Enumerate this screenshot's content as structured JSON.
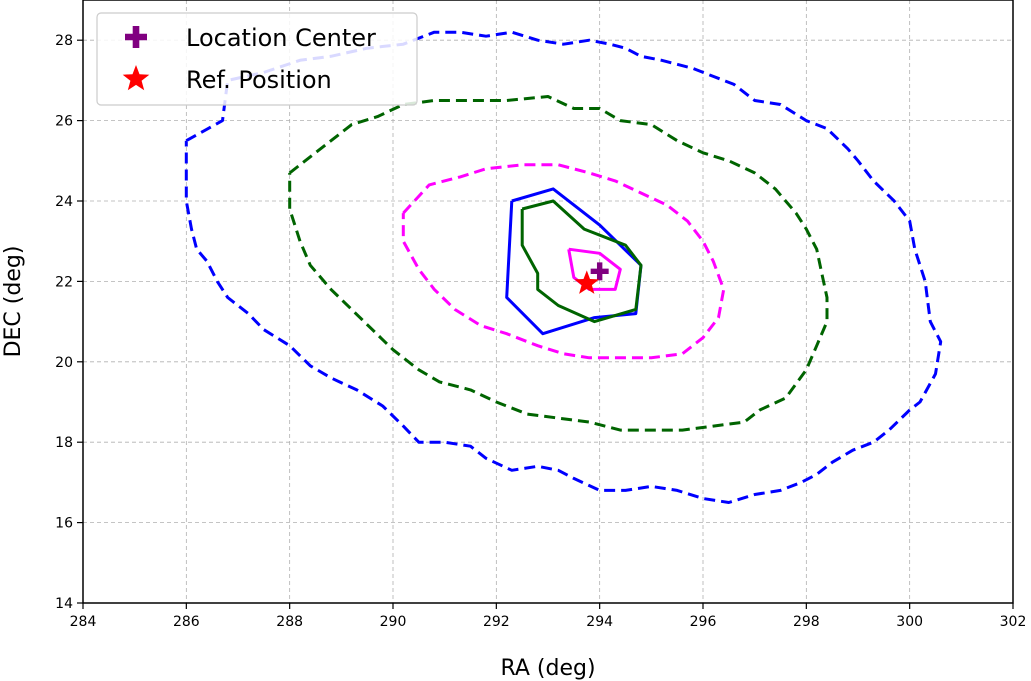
{
  "chart_data": {
    "type": "contour",
    "xlabel": "RA (deg)",
    "ylabel": "DEC (deg)",
    "xlim": [
      284,
      302
    ],
    "ylim": [
      14,
      29
    ],
    "xticks": [
      284,
      286,
      288,
      290,
      292,
      294,
      296,
      298,
      300,
      302
    ],
    "yticks": [
      14,
      16,
      18,
      20,
      22,
      24,
      26,
      28
    ],
    "grid": true,
    "legend_position": "top-left",
    "legend": [
      {
        "label": "Location Center",
        "marker": "plus",
        "color": "#800080"
      },
      {
        "label": "Ref. Position",
        "marker": "star",
        "color": "#ff0000"
      }
    ],
    "points": [
      {
        "name": "Location Center",
        "x": 294.0,
        "y": 22.25,
        "marker": "plus",
        "color": "#800080"
      },
      {
        "name": "Ref. Position",
        "x": 293.75,
        "y": 21.95,
        "marker": "star",
        "color": "#ff0000"
      }
    ],
    "contours": [
      {
        "color": "#0000ff",
        "style": "dashed",
        "points": [
          [
            286.0,
            25.5
          ],
          [
            286.7,
            26.0
          ],
          [
            286.8,
            27.0
          ],
          [
            287.5,
            27.2
          ],
          [
            288.2,
            27.5
          ],
          [
            288.8,
            27.6
          ],
          [
            289.5,
            27.8
          ],
          [
            290.2,
            27.9
          ],
          [
            290.8,
            28.2
          ],
          [
            291.3,
            28.2
          ],
          [
            291.8,
            28.1
          ],
          [
            292.3,
            28.2
          ],
          [
            292.8,
            28.0
          ],
          [
            293.3,
            27.9
          ],
          [
            293.8,
            28.0
          ],
          [
            294.2,
            27.9
          ],
          [
            294.5,
            27.8
          ],
          [
            294.8,
            27.6
          ],
          [
            295.2,
            27.5
          ],
          [
            295.5,
            27.4
          ],
          [
            295.8,
            27.3
          ],
          [
            296.2,
            27.1
          ],
          [
            296.6,
            26.9
          ],
          [
            297.0,
            26.5
          ],
          [
            297.5,
            26.4
          ],
          [
            298.0,
            26.0
          ],
          [
            298.4,
            25.8
          ],
          [
            298.8,
            25.3
          ],
          [
            299.0,
            25.0
          ],
          [
            299.3,
            24.5
          ],
          [
            299.7,
            24.0
          ],
          [
            300.0,
            23.5
          ],
          [
            300.1,
            22.8
          ],
          [
            300.3,
            22.0
          ],
          [
            300.4,
            21.0
          ],
          [
            300.6,
            20.5
          ],
          [
            300.5,
            19.7
          ],
          [
            300.2,
            19.0
          ],
          [
            300.0,
            18.8
          ],
          [
            299.6,
            18.3
          ],
          [
            299.3,
            18.0
          ],
          [
            298.9,
            17.8
          ],
          [
            298.5,
            17.5
          ],
          [
            298.2,
            17.2
          ],
          [
            297.9,
            17.0
          ],
          [
            297.5,
            16.8
          ],
          [
            297.0,
            16.7
          ],
          [
            296.5,
            16.5
          ],
          [
            296.0,
            16.6
          ],
          [
            295.5,
            16.8
          ],
          [
            295.0,
            16.9
          ],
          [
            294.5,
            16.8
          ],
          [
            294.0,
            16.8
          ],
          [
            293.5,
            17.1
          ],
          [
            293.2,
            17.3
          ],
          [
            292.8,
            17.4
          ],
          [
            292.3,
            17.3
          ],
          [
            291.8,
            17.6
          ],
          [
            291.5,
            17.9
          ],
          [
            291.0,
            18.0
          ],
          [
            290.5,
            18.0
          ],
          [
            290.2,
            18.4
          ],
          [
            289.8,
            18.9
          ],
          [
            289.3,
            19.3
          ],
          [
            288.8,
            19.6
          ],
          [
            288.4,
            19.9
          ],
          [
            288.0,
            20.4
          ],
          [
            287.5,
            20.8
          ],
          [
            287.2,
            21.2
          ],
          [
            286.8,
            21.6
          ],
          [
            286.6,
            22.0
          ],
          [
            286.4,
            22.5
          ],
          [
            286.2,
            22.8
          ],
          [
            286.1,
            23.3
          ],
          [
            286.0,
            24.0
          ],
          [
            286.0,
            25.5
          ]
        ]
      },
      {
        "color": "#006400",
        "style": "dashed",
        "points": [
          [
            288.0,
            24.7
          ],
          [
            288.4,
            25.1
          ],
          [
            288.8,
            25.5
          ],
          [
            289.2,
            25.9
          ],
          [
            289.7,
            26.1
          ],
          [
            290.2,
            26.4
          ],
          [
            290.8,
            26.5
          ],
          [
            291.5,
            26.5
          ],
          [
            292.2,
            26.5
          ],
          [
            293.0,
            26.6
          ],
          [
            293.5,
            26.3
          ],
          [
            294.0,
            26.3
          ],
          [
            294.4,
            26.0
          ],
          [
            295.0,
            25.9
          ],
          [
            295.5,
            25.5
          ],
          [
            296.0,
            25.2
          ],
          [
            296.5,
            25.0
          ],
          [
            297.0,
            24.7
          ],
          [
            297.4,
            24.3
          ],
          [
            297.8,
            23.7
          ],
          [
            298.0,
            23.3
          ],
          [
            298.2,
            22.8
          ],
          [
            298.3,
            22.2
          ],
          [
            298.4,
            21.6
          ],
          [
            298.4,
            21.0
          ],
          [
            298.2,
            20.4
          ],
          [
            298.0,
            19.8
          ],
          [
            297.6,
            19.1
          ],
          [
            297.1,
            18.8
          ],
          [
            296.8,
            18.5
          ],
          [
            296.2,
            18.4
          ],
          [
            295.6,
            18.3
          ],
          [
            295.0,
            18.3
          ],
          [
            294.4,
            18.3
          ],
          [
            293.8,
            18.5
          ],
          [
            293.2,
            18.6
          ],
          [
            292.6,
            18.7
          ],
          [
            292.0,
            19.0
          ],
          [
            291.5,
            19.3
          ],
          [
            290.9,
            19.5
          ],
          [
            290.5,
            19.8
          ],
          [
            290.0,
            20.3
          ],
          [
            289.6,
            20.8
          ],
          [
            289.2,
            21.3
          ],
          [
            288.8,
            21.8
          ],
          [
            288.4,
            22.4
          ],
          [
            288.2,
            23.0
          ],
          [
            288.0,
            23.8
          ],
          [
            288.0,
            24.7
          ]
        ]
      },
      {
        "color": "#ff00ff",
        "style": "dashed",
        "points": [
          [
            290.2,
            23.7
          ],
          [
            290.7,
            24.4
          ],
          [
            291.3,
            24.6
          ],
          [
            291.8,
            24.8
          ],
          [
            292.5,
            24.9
          ],
          [
            293.2,
            24.9
          ],
          [
            293.8,
            24.7
          ],
          [
            294.3,
            24.5
          ],
          [
            294.8,
            24.2
          ],
          [
            295.3,
            23.9
          ],
          [
            295.7,
            23.5
          ],
          [
            296.0,
            23.0
          ],
          [
            296.2,
            22.5
          ],
          [
            296.4,
            21.8
          ],
          [
            296.3,
            21.1
          ],
          [
            296.0,
            20.6
          ],
          [
            295.6,
            20.2
          ],
          [
            295.0,
            20.1
          ],
          [
            294.4,
            20.1
          ],
          [
            293.8,
            20.1
          ],
          [
            293.3,
            20.2
          ],
          [
            292.8,
            20.4
          ],
          [
            292.2,
            20.7
          ],
          [
            291.7,
            20.9
          ],
          [
            291.2,
            21.3
          ],
          [
            290.8,
            21.8
          ],
          [
            290.5,
            22.3
          ],
          [
            290.2,
            23.0
          ],
          [
            290.2,
            23.7
          ]
        ]
      },
      {
        "color": "#0000ff",
        "style": "solid",
        "points": [
          [
            292.3,
            24.0
          ],
          [
            293.1,
            24.3
          ],
          [
            294.0,
            23.4
          ],
          [
            294.8,
            22.4
          ],
          [
            294.7,
            21.2
          ],
          [
            293.9,
            21.1
          ],
          [
            292.9,
            20.7
          ],
          [
            292.2,
            21.6
          ],
          [
            292.3,
            24.0
          ]
        ]
      },
      {
        "color": "#006400",
        "style": "solid",
        "points": [
          [
            292.5,
            23.8
          ],
          [
            293.1,
            24.0
          ],
          [
            293.7,
            23.3
          ],
          [
            294.5,
            22.9
          ],
          [
            294.8,
            22.4
          ],
          [
            294.7,
            21.3
          ],
          [
            293.9,
            21.0
          ],
          [
            293.2,
            21.4
          ],
          [
            292.8,
            21.8
          ],
          [
            292.8,
            22.2
          ],
          [
            292.5,
            22.9
          ],
          [
            292.5,
            23.8
          ]
        ]
      },
      {
        "color": "#ff00ff",
        "style": "solid",
        "points": [
          [
            293.4,
            22.8
          ],
          [
            294.0,
            22.7
          ],
          [
            294.4,
            22.3
          ],
          [
            294.3,
            21.8
          ],
          [
            293.8,
            21.8
          ],
          [
            293.5,
            22.1
          ],
          [
            293.4,
            22.8
          ]
        ]
      }
    ]
  }
}
